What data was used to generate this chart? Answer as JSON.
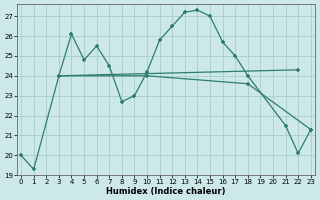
{
  "xlabel": "Humidex (Indice chaleur)",
  "bg_color": "#cce8e8",
  "grid_color": "#aacccc",
  "line_color": "#2e7d6e",
  "series1_x": [
    0,
    1,
    3,
    4,
    5,
    6,
    7,
    8,
    9,
    10,
    11,
    12,
    13,
    14,
    15,
    16,
    17,
    18,
    21,
    22,
    23
  ],
  "series1_y": [
    20.0,
    19.3,
    24.0,
    26.1,
    24.8,
    25.5,
    24.5,
    22.7,
    23.0,
    24.2,
    25.8,
    26.5,
    27.2,
    27.3,
    27.0,
    25.7,
    25.0,
    24.0,
    21.5,
    20.1,
    21.3
  ],
  "series2_x": [
    3,
    22
  ],
  "series2_y": [
    24.0,
    24.3
  ],
  "series3_x": [
    3,
    10,
    18,
    23
  ],
  "series3_y": [
    24.0,
    24.0,
    23.6,
    21.3
  ],
  "ylim": [
    19,
    27.6
  ],
  "xlim": [
    -0.3,
    23.3
  ],
  "yticks": [
    19,
    20,
    21,
    22,
    23,
    24,
    25,
    26,
    27
  ],
  "xticks": [
    0,
    1,
    2,
    3,
    4,
    5,
    6,
    7,
    8,
    9,
    10,
    11,
    12,
    13,
    14,
    15,
    16,
    17,
    18,
    19,
    20,
    21,
    22,
    23
  ]
}
